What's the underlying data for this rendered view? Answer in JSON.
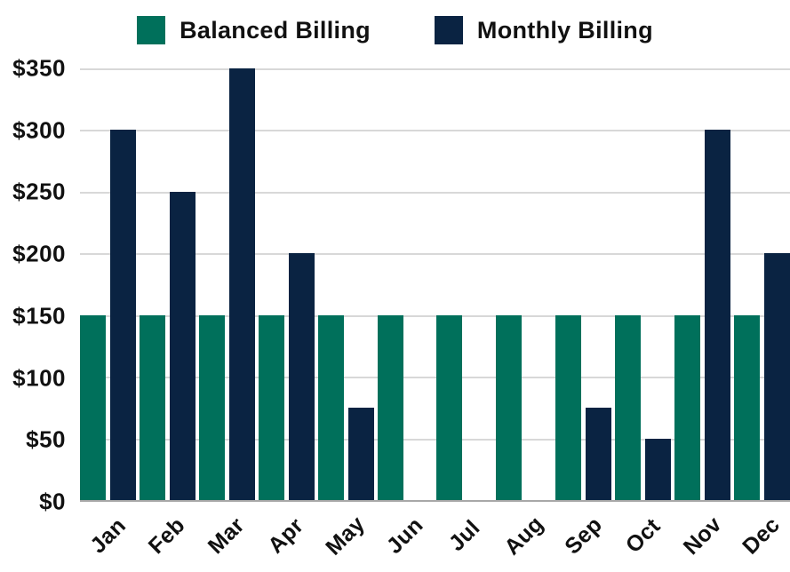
{
  "colors": {
    "balanced": "#00705B",
    "monthly": "#0A2342",
    "gridline": "#D8D8D8",
    "axis_line": "#A8A8A8",
    "text": "#111111"
  },
  "legend": [
    {
      "label": "Balanced Billing",
      "series_key": "balanced"
    },
    {
      "label": "Monthly Billing",
      "series_key": "monthly"
    }
  ],
  "y_axis": {
    "tick_prefix": "$",
    "ticks": [
      0,
      50,
      100,
      150,
      200,
      250,
      300,
      350
    ]
  },
  "chart_data": {
    "type": "bar",
    "title": "",
    "xlabel": "",
    "ylabel": "",
    "categories": [
      "Jan",
      "Feb",
      "Mar",
      "Apr",
      "May",
      "Jun",
      "Jul",
      "Aug",
      "Sep",
      "Oct",
      "Nov",
      "Dec"
    ],
    "series": [
      {
        "name": "Balanced Billing",
        "color": "#00705B",
        "values": [
          150,
          150,
          150,
          150,
          150,
          150,
          150,
          150,
          150,
          150,
          150,
          150
        ]
      },
      {
        "name": "Monthly Billing",
        "color": "#0A2342",
        "values": [
          300,
          250,
          350,
          200,
          75,
          0,
          0,
          0,
          75,
          50,
          300,
          200
        ]
      }
    ],
    "ylim": [
      0,
      350
    ],
    "y_tick_step": 50,
    "y_tick_format": "$%d",
    "grid": true,
    "gridlines": "horizontal",
    "legend_position": "top",
    "x_label_rotation_deg": -45
  }
}
